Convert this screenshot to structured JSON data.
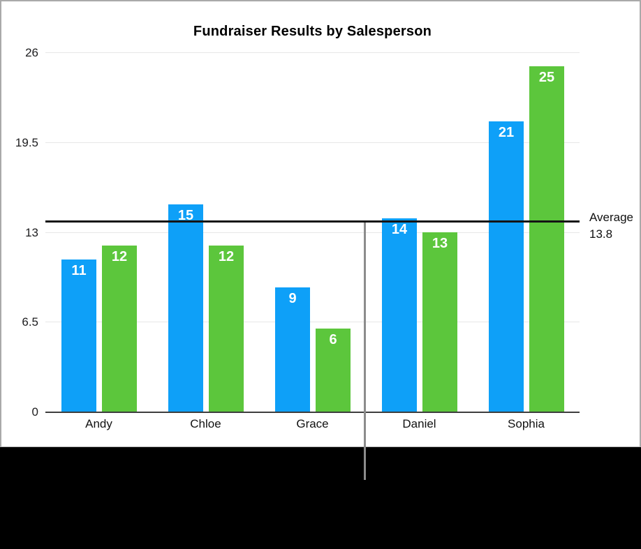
{
  "chart_data": {
    "type": "bar",
    "title": "Fundraiser Results by Salesperson",
    "categories": [
      "Andy",
      "Chloe",
      "Grace",
      "Daniel",
      "Sophia"
    ],
    "series": [
      {
        "name": "Blue",
        "color": "#0ea0f8",
        "values": [
          11,
          15,
          9,
          14,
          21
        ]
      },
      {
        "name": "Green",
        "color": "#5cc63c",
        "values": [
          12,
          12,
          6,
          13,
          25
        ]
      }
    ],
    "y_ticks": [
      0,
      6.5,
      13,
      19.5,
      26
    ],
    "ylim": [
      0,
      26
    ],
    "xlabel": "",
    "ylabel": "",
    "grid": true,
    "legend": "none",
    "value_labels": "inside-top-white",
    "average_line": {
      "value": 13.8,
      "label_line1": "Average",
      "label_line2": "13.8",
      "color": "#141414"
    }
  },
  "annotations": {
    "callout_line": {
      "points_to": "average-line",
      "color": "#8c8c8c"
    }
  },
  "frame": {
    "border_color": "#a9a9a9",
    "panel_background": "#ffffff",
    "bottom_band_color": "#000000",
    "gridline_color": "#e7e7e7",
    "axis_color": "#3d3d3d"
  }
}
